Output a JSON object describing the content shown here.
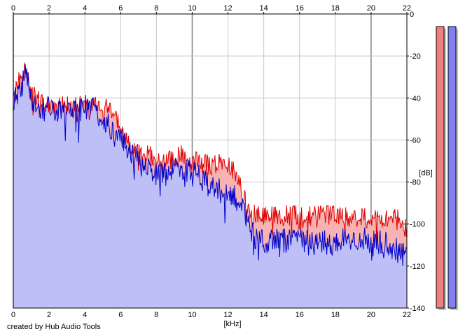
{
  "credit": "created by Hub Audio Tools",
  "colors": {
    "background": "#ffffff",
    "grid": "#c8c8c8",
    "grid_major": "#808080",
    "left_channel_line": "#e00000",
    "left_channel_fill": "#f7b2b2",
    "right_channel_line": "#0000c8",
    "right_channel_fill": "#bfbff8",
    "meter_left": "#f08080",
    "meter_right": "#8080f0"
  },
  "chart_data": {
    "type": "area",
    "xlabel": "[kHz]",
    "ylabel": "[dB]",
    "xlim": [
      0,
      22
    ],
    "ylim": [
      -140,
      0
    ],
    "x_ticks": [
      "0",
      "2",
      "4",
      "6",
      "8",
      "10",
      "12",
      "14",
      "16",
      "18",
      "20",
      "22"
    ],
    "y_ticks": [
      "0",
      "-20",
      "-40",
      "-60",
      "-80",
      "-100",
      "-120",
      "-140"
    ],
    "x_tick_values": [
      0,
      2,
      4,
      6,
      8,
      10,
      12,
      14,
      16,
      18,
      20,
      22
    ],
    "y_tick_values": [
      0,
      -20,
      -40,
      -60,
      -80,
      -100,
      -120,
      -140
    ],
    "grid": true,
    "x": [
      0,
      0.5,
      0.7,
      1,
      1.5,
      2,
      2.5,
      3,
      3.5,
      4,
      4.5,
      5,
      5.5,
      6,
      6.5,
      7,
      7.5,
      8,
      8.5,
      9,
      9.5,
      10,
      10.5,
      11,
      11.5,
      12,
      12.5,
      13,
      13.5,
      14,
      15,
      16,
      17,
      18,
      19,
      20,
      21,
      21.5,
      22
    ],
    "series": [
      {
        "values": [
          -35,
          -31,
          -25,
          -38,
          -42,
          -42,
          -44,
          -44,
          -44,
          -44,
          -43,
          -44,
          -47,
          -55,
          -62,
          -66,
          -67,
          -70,
          -70,
          -69,
          -67,
          -70,
          -71,
          -72,
          -71,
          -72,
          -76,
          -90,
          -96,
          -96,
          -96,
          -96,
          -96,
          -96,
          -97,
          -97,
          -97,
          -98,
          -103
        ]
      },
      {
        "values": [
          -40,
          -34,
          -28,
          -42,
          -46,
          -45,
          -47,
          -46,
          -47,
          -44,
          -45,
          -50,
          -55,
          -58,
          -65,
          -70,
          -73,
          -76,
          -76,
          -74,
          -74,
          -76,
          -78,
          -80,
          -84,
          -86,
          -88,
          -97,
          -107,
          -108,
          -108,
          -108,
          -109,
          -109,
          -107,
          -108,
          -110,
          -113,
          -115
        ]
      }
    ],
    "meters": [
      {
        "level_db": -6
      },
      {
        "level_db": -6
      }
    ]
  }
}
